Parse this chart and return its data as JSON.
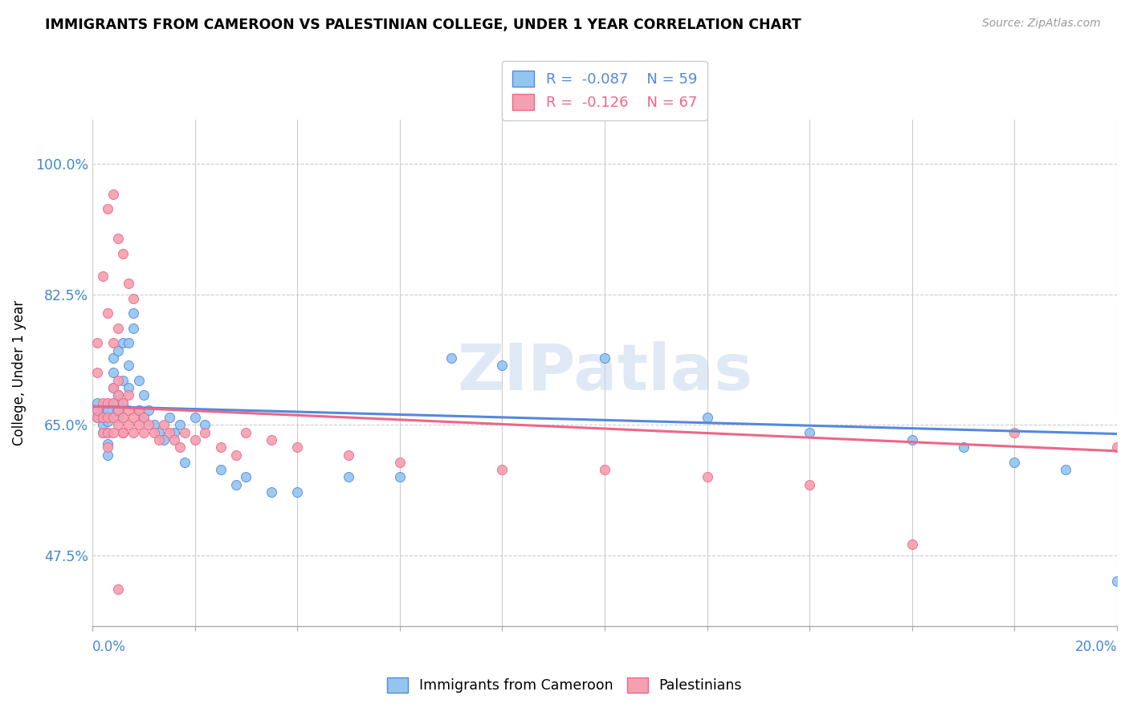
{
  "title": "IMMIGRANTS FROM CAMEROON VS PALESTINIAN COLLEGE, UNDER 1 YEAR CORRELATION CHART",
  "source": "Source: ZipAtlas.com",
  "ylabel": "College, Under 1 year",
  "xlim": [
    0.0,
    0.2
  ],
  "ylim": [
    0.38,
    1.06
  ],
  "y_tick_show": [
    0.475,
    0.65,
    0.825,
    1.0
  ],
  "y_tick_labels": [
    "47.5%",
    "65.0%",
    "82.5%",
    "100.0%"
  ],
  "legend_R1": "-0.087",
  "legend_N1": "59",
  "legend_R2": "-0.126",
  "legend_N2": "67",
  "color_blue": "#92C5F0",
  "color_pink": "#F4A0B0",
  "color_blue_line": "#5588DD",
  "color_pink_line": "#EE6688",
  "color_axis_blue": "#4488CC",
  "watermark": "ZIPatlas",
  "cam_x": [
    0.001,
    0.001,
    0.001,
    0.002,
    0.002,
    0.002,
    0.002,
    0.003,
    0.003,
    0.003,
    0.003,
    0.003,
    0.004,
    0.004,
    0.004,
    0.004,
    0.005,
    0.005,
    0.005,
    0.005,
    0.006,
    0.006,
    0.006,
    0.007,
    0.007,
    0.007,
    0.008,
    0.008,
    0.009,
    0.009,
    0.01,
    0.01,
    0.011,
    0.012,
    0.013,
    0.014,
    0.015,
    0.016,
    0.017,
    0.018,
    0.02,
    0.022,
    0.025,
    0.028,
    0.03,
    0.035,
    0.04,
    0.05,
    0.06,
    0.07,
    0.08,
    0.1,
    0.12,
    0.14,
    0.16,
    0.17,
    0.18,
    0.19,
    0.2
  ],
  "cam_y": [
    0.66,
    0.67,
    0.68,
    0.64,
    0.65,
    0.66,
    0.67,
    0.61,
    0.625,
    0.64,
    0.655,
    0.67,
    0.68,
    0.7,
    0.72,
    0.74,
    0.66,
    0.67,
    0.69,
    0.75,
    0.68,
    0.71,
    0.76,
    0.7,
    0.73,
    0.76,
    0.78,
    0.8,
    0.67,
    0.71,
    0.66,
    0.69,
    0.67,
    0.65,
    0.64,
    0.63,
    0.66,
    0.64,
    0.65,
    0.6,
    0.66,
    0.65,
    0.59,
    0.57,
    0.58,
    0.56,
    0.56,
    0.58,
    0.58,
    0.74,
    0.73,
    0.74,
    0.66,
    0.64,
    0.63,
    0.62,
    0.6,
    0.59,
    0.44
  ],
  "pal_x": [
    0.001,
    0.001,
    0.001,
    0.001,
    0.002,
    0.002,
    0.002,
    0.002,
    0.003,
    0.003,
    0.003,
    0.003,
    0.004,
    0.004,
    0.004,
    0.004,
    0.005,
    0.005,
    0.005,
    0.005,
    0.006,
    0.006,
    0.006,
    0.007,
    0.007,
    0.007,
    0.008,
    0.008,
    0.009,
    0.009,
    0.01,
    0.01,
    0.011,
    0.012,
    0.013,
    0.014,
    0.015,
    0.016,
    0.017,
    0.018,
    0.02,
    0.022,
    0.025,
    0.028,
    0.03,
    0.035,
    0.04,
    0.05,
    0.06,
    0.08,
    0.1,
    0.12,
    0.14,
    0.16,
    0.18,
    0.2,
    0.003,
    0.004,
    0.005,
    0.006,
    0.007,
    0.008,
    0.003,
    0.005,
    0.004,
    0.006,
    0.005
  ],
  "pal_y": [
    0.66,
    0.67,
    0.72,
    0.76,
    0.64,
    0.66,
    0.68,
    0.85,
    0.62,
    0.64,
    0.66,
    0.68,
    0.64,
    0.66,
    0.68,
    0.7,
    0.65,
    0.67,
    0.69,
    0.71,
    0.64,
    0.66,
    0.68,
    0.65,
    0.67,
    0.69,
    0.64,
    0.66,
    0.65,
    0.67,
    0.64,
    0.66,
    0.65,
    0.64,
    0.63,
    0.65,
    0.64,
    0.63,
    0.62,
    0.64,
    0.63,
    0.64,
    0.62,
    0.61,
    0.64,
    0.63,
    0.62,
    0.61,
    0.6,
    0.59,
    0.59,
    0.58,
    0.57,
    0.49,
    0.64,
    0.62,
    0.94,
    0.96,
    0.9,
    0.88,
    0.84,
    0.82,
    0.8,
    0.78,
    0.76,
    0.64,
    0.43
  ]
}
